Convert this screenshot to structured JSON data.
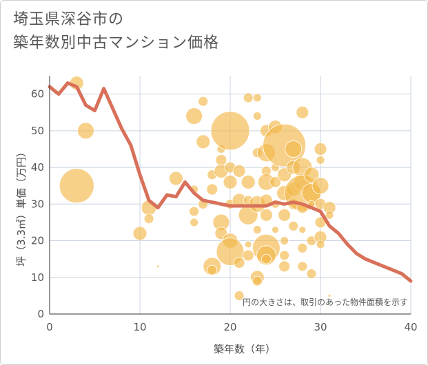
{
  "title_lines": [
    "埼玉県深谷市の",
    "築年数別中古マンション価格"
  ],
  "note": "円の大きさは、取引のあった物件面積を示す",
  "chart_data": {
    "type": "scatter",
    "xlabel": "築年数（年）",
    "ylabel": "坪（3.3㎡）単価（万円）",
    "xlim": [
      0,
      40
    ],
    "ylim": [
      0,
      65
    ],
    "xticks": [
      0,
      10,
      20,
      30,
      40
    ],
    "yticks": [
      0,
      10,
      20,
      30,
      40,
      50,
      60
    ],
    "grid": true,
    "colors": {
      "bubble": "#f2b84b",
      "line": "#d9705a",
      "grid": "#c8d3e0"
    },
    "bubbles": [
      {
        "x": 3,
        "y": 63,
        "s": 10
      },
      {
        "x": 3,
        "y": 35,
        "s": 25
      },
      {
        "x": 4,
        "y": 50,
        "s": 12
      },
      {
        "x": 10,
        "y": 22,
        "s": 10
      },
      {
        "x": 11,
        "y": 29,
        "s": 11
      },
      {
        "x": 11,
        "y": 26,
        "s": 7
      },
      {
        "x": 12,
        "y": 13,
        "s": 2
      },
      {
        "x": 14,
        "y": 37,
        "s": 10
      },
      {
        "x": 16,
        "y": 54,
        "s": 12
      },
      {
        "x": 16,
        "y": 34,
        "s": 6
      },
      {
        "x": 17,
        "y": 58,
        "s": 7
      },
      {
        "x": 17,
        "y": 47,
        "s": 10
      },
      {
        "x": 16,
        "y": 28,
        "s": 7
      },
      {
        "x": 16,
        "y": 25,
        "s": 6
      },
      {
        "x": 17,
        "y": 30,
        "s": 7
      },
      {
        "x": 18,
        "y": 34,
        "s": 8
      },
      {
        "x": 18,
        "y": 38,
        "s": 7
      },
      {
        "x": 18,
        "y": 13,
        "s": 13
      },
      {
        "x": 18,
        "y": 12,
        "s": 7
      },
      {
        "x": 19,
        "y": 25,
        "s": 12
      },
      {
        "x": 19,
        "y": 22,
        "s": 9
      },
      {
        "x": 19,
        "y": 42,
        "s": 8
      },
      {
        "x": 19,
        "y": 39,
        "s": 10
      },
      {
        "x": 19,
        "y": 45,
        "s": 6
      },
      {
        "x": 20,
        "y": 50,
        "s": 28
      },
      {
        "x": 20,
        "y": 40,
        "s": 8
      },
      {
        "x": 20,
        "y": 36,
        "s": 10
      },
      {
        "x": 20,
        "y": 30,
        "s": 7
      },
      {
        "x": 20,
        "y": 20,
        "s": 11
      },
      {
        "x": 20,
        "y": 17,
        "s": 20
      },
      {
        "x": 21,
        "y": 39,
        "s": 9
      },
      {
        "x": 21,
        "y": 31,
        "s": 10
      },
      {
        "x": 21,
        "y": 14,
        "s": 8
      },
      {
        "x": 21,
        "y": 5,
        "s": 7
      },
      {
        "x": 22,
        "y": 59,
        "s": 7
      },
      {
        "x": 22,
        "y": 36,
        "s": 10
      },
      {
        "x": 22,
        "y": 31,
        "s": 7
      },
      {
        "x": 22,
        "y": 27,
        "s": 14
      },
      {
        "x": 22,
        "y": 19,
        "s": 5
      },
      {
        "x": 22,
        "y": 16,
        "s": 8
      },
      {
        "x": 23,
        "y": 59,
        "s": 6
      },
      {
        "x": 23,
        "y": 54,
        "s": 6
      },
      {
        "x": 23,
        "y": 44,
        "s": 7
      },
      {
        "x": 23,
        "y": 30,
        "s": 12
      },
      {
        "x": 23,
        "y": 23,
        "s": 6
      },
      {
        "x": 23,
        "y": 10,
        "s": 10
      },
      {
        "x": 23,
        "y": 9,
        "s": 7
      },
      {
        "x": 24,
        "y": 50,
        "s": 9
      },
      {
        "x": 24,
        "y": 44,
        "s": 13
      },
      {
        "x": 24,
        "y": 39,
        "s": 7
      },
      {
        "x": 24,
        "y": 36,
        "s": 12
      },
      {
        "x": 24,
        "y": 31,
        "s": 9
      },
      {
        "x": 24,
        "y": 27,
        "s": 9
      },
      {
        "x": 24,
        "y": 18,
        "s": 20
      },
      {
        "x": 24,
        "y": 16,
        "s": 14
      },
      {
        "x": 24,
        "y": 15,
        "s": 7
      },
      {
        "x": 25,
        "y": 51,
        "s": 10
      },
      {
        "x": 25,
        "y": 40,
        "s": 6
      },
      {
        "x": 25,
        "y": 36,
        "s": 8
      },
      {
        "x": 25,
        "y": 30,
        "s": 6
      },
      {
        "x": 25,
        "y": 23,
        "s": 5
      },
      {
        "x": 26,
        "y": 46,
        "s": 31
      },
      {
        "x": 26,
        "y": 38,
        "s": 10
      },
      {
        "x": 26,
        "y": 33,
        "s": 11
      },
      {
        "x": 26,
        "y": 27,
        "s": 9
      },
      {
        "x": 26,
        "y": 20,
        "s": 6
      },
      {
        "x": 26,
        "y": 16,
        "s": 7
      },
      {
        "x": 26,
        "y": 13,
        "s": 8
      },
      {
        "x": 27,
        "y": 45,
        "s": 12
      },
      {
        "x": 27,
        "y": 40,
        "s": 10
      },
      {
        "x": 27,
        "y": 34,
        "s": 10
      },
      {
        "x": 27,
        "y": 30,
        "s": 8
      },
      {
        "x": 27,
        "y": 24,
        "s": 7
      },
      {
        "x": 28,
        "y": 55,
        "s": 9
      },
      {
        "x": 28,
        "y": 40,
        "s": 14
      },
      {
        "x": 28,
        "y": 36,
        "s": 12
      },
      {
        "x": 28,
        "y": 33,
        "s": 26
      },
      {
        "x": 28,
        "y": 29,
        "s": 8
      },
      {
        "x": 28,
        "y": 23,
        "s": 5
      },
      {
        "x": 28,
        "y": 18,
        "s": 7
      },
      {
        "x": 28,
        "y": 13,
        "s": 7
      },
      {
        "x": 29,
        "y": 38,
        "s": 11
      },
      {
        "x": 29,
        "y": 33,
        "s": 14
      },
      {
        "x": 29,
        "y": 30,
        "s": 5
      },
      {
        "x": 29,
        "y": 20,
        "s": 7
      },
      {
        "x": 29,
        "y": 11,
        "s": 7
      },
      {
        "x": 30,
        "y": 45,
        "s": 9
      },
      {
        "x": 30,
        "y": 42,
        "s": 6
      },
      {
        "x": 30,
        "y": 35,
        "s": 12
      },
      {
        "x": 30,
        "y": 30,
        "s": 8
      },
      {
        "x": 30,
        "y": 25,
        "s": 8
      },
      {
        "x": 30,
        "y": 21,
        "s": 9
      },
      {
        "x": 30,
        "y": 19,
        "s": 6
      },
      {
        "x": 31,
        "y": 29,
        "s": 9
      },
      {
        "x": 31,
        "y": 27,
        "s": 6
      },
      {
        "x": 31,
        "y": 5,
        "s": 2
      }
    ],
    "line": {
      "x": [
        0,
        1,
        2,
        3,
        4,
        5,
        6,
        7,
        8,
        9,
        10,
        11,
        12,
        13,
        14,
        15,
        16,
        17,
        18,
        19,
        20,
        21,
        22,
        23,
        24,
        25,
        26,
        27,
        28,
        29,
        30,
        31,
        32,
        33,
        34,
        35,
        36,
        37,
        38,
        39,
        40
      ],
      "y": [
        62,
        60,
        63,
        62,
        57,
        55.5,
        61.5,
        56,
        50.5,
        46,
        38,
        31,
        29,
        32.5,
        32,
        36,
        33,
        31,
        30.5,
        30,
        29.5,
        29.5,
        29.5,
        29.5,
        29.5,
        30.5,
        30,
        30.5,
        30,
        29,
        28,
        24,
        22,
        19,
        16.5,
        15,
        14,
        13,
        12,
        11,
        9
      ]
    }
  }
}
